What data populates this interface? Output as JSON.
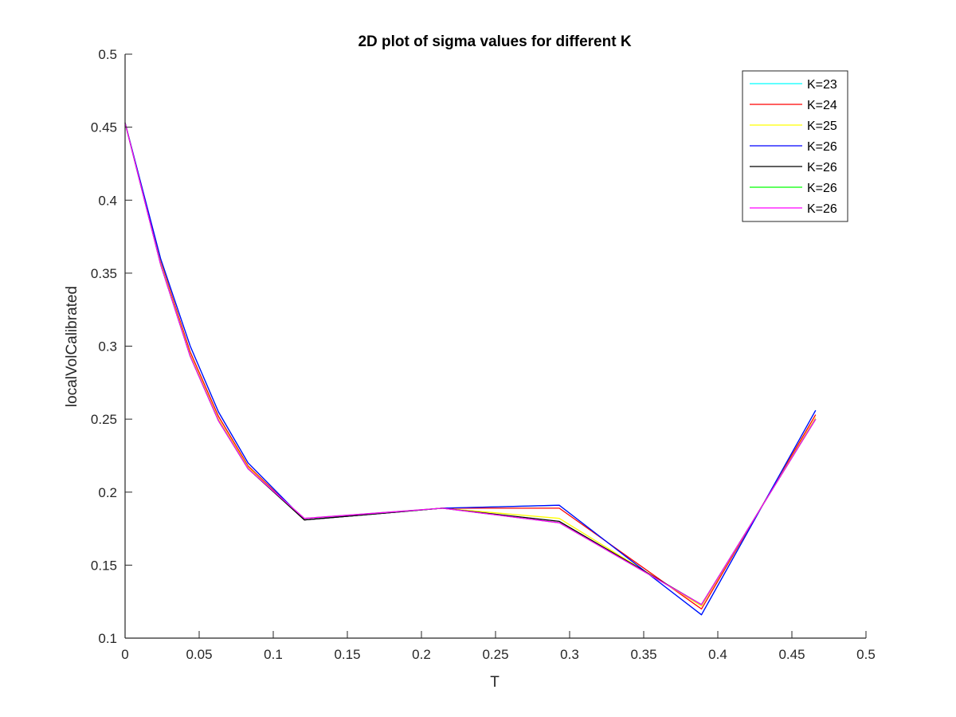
{
  "chart_data": {
    "type": "line",
    "title": "2D plot of sigma values for different K",
    "xlabel": "T",
    "ylabel": "localVolCalibrated",
    "xlim": [
      0,
      0.5
    ],
    "ylim": [
      0.1,
      0.5
    ],
    "xticks": [
      0,
      0.05,
      0.1,
      0.15,
      0.2,
      0.25,
      0.3,
      0.35,
      0.4,
      0.45,
      0.5
    ],
    "xtick_labels": [
      "0",
      "0.05",
      "0.1",
      "0.15",
      "0.2",
      "0.25",
      "0.3",
      "0.35",
      "0.4",
      "0.45",
      "0.5"
    ],
    "yticks": [
      0.1,
      0.15,
      0.2,
      0.25,
      0.3,
      0.35,
      0.4,
      0.45,
      0.5
    ],
    "ytick_labels": [
      "0.1",
      "0.15",
      "0.2",
      "0.25",
      "0.3",
      "0.35",
      "0.4",
      "0.45",
      "0.5"
    ],
    "grid": false,
    "legend_position": "top-right",
    "x": [
      0,
      0.024,
      0.044,
      0.063,
      0.083,
      0.121,
      0.214,
      0.293,
      0.389,
      0.466
    ],
    "series": [
      {
        "name": "K=23",
        "color": "#00ffff",
        "values": [
          0.453,
          0.36,
          0.3,
          0.255,
          0.22,
          0.181,
          0.189,
          0.191,
          0.116,
          0.256
        ]
      },
      {
        "name": "K=24",
        "color": "#ff0000",
        "values": [
          0.453,
          0.358,
          0.296,
          0.252,
          0.218,
          0.181,
          0.189,
          0.189,
          0.12,
          0.253
        ]
      },
      {
        "name": "K=25",
        "color": "#ffff00",
        "values": [
          0.453,
          0.357,
          0.294,
          0.25,
          0.217,
          0.181,
          0.189,
          0.182,
          0.122,
          0.251
        ]
      },
      {
        "name": "K=26",
        "color": "#0000ff",
        "values": [
          0.453,
          0.36,
          0.3,
          0.255,
          0.22,
          0.181,
          0.189,
          0.191,
          0.116,
          0.256
        ]
      },
      {
        "name": "K=26",
        "color": "#000000",
        "values": [
          0.453,
          0.356,
          0.293,
          0.249,
          0.216,
          0.181,
          0.189,
          0.18,
          0.123,
          0.25
        ]
      },
      {
        "name": "K=26",
        "color": "#00ff00",
        "values": [
          0.453,
          0.356,
          0.293,
          0.249,
          0.216,
          0.182,
          0.189,
          0.179,
          0.123,
          0.25
        ]
      },
      {
        "name": "K=26",
        "color": "#ff00ff",
        "values": [
          0.453,
          0.356,
          0.293,
          0.249,
          0.216,
          0.182,
          0.189,
          0.179,
          0.123,
          0.25
        ]
      }
    ]
  }
}
